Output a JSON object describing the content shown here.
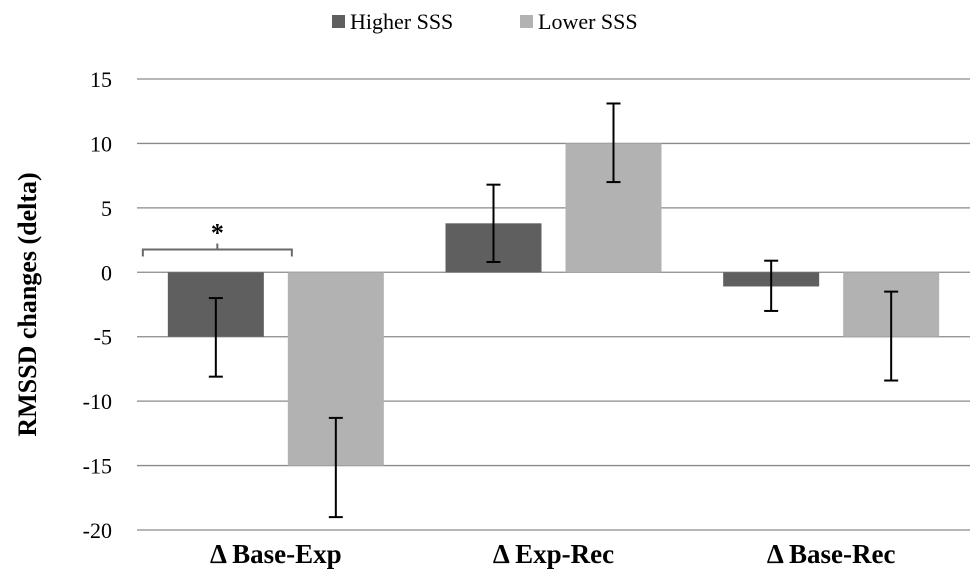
{
  "chart_data": {
    "type": "bar",
    "title": "",
    "xlabel": "",
    "ylabel": "RMSSD changes (delta)",
    "ylim": [
      -20,
      15
    ],
    "yticks": [
      15,
      10,
      5,
      0,
      -5,
      -10,
      -15,
      -20
    ],
    "grid": true,
    "legend_position": "top-center",
    "categories": [
      "Δ Base-Exp",
      "Δ Exp-Rec",
      "Δ Base-Rec"
    ],
    "series": [
      {
        "name": "Higher SSS",
        "color": "#5f5f5f",
        "values": [
          -5,
          3.8,
          -1.1
        ],
        "error_low": [
          -8.1,
          0.8,
          -3.0
        ],
        "error_high": [
          -2.0,
          6.8,
          0.9
        ]
      },
      {
        "name": "Lower SSS",
        "color": "#b2b2b2",
        "values": [
          -15,
          10,
          -5
        ],
        "error_low": [
          -19.0,
          7.0,
          -8.4
        ],
        "error_high": [
          -11.3,
          13.1,
          -1.5
        ]
      }
    ],
    "annotations": [
      {
        "text": "*",
        "category": "Δ Base-Exp",
        "bracket": [
          "Higher SSS",
          "Lower SSS"
        ],
        "y": 2
      }
    ]
  }
}
